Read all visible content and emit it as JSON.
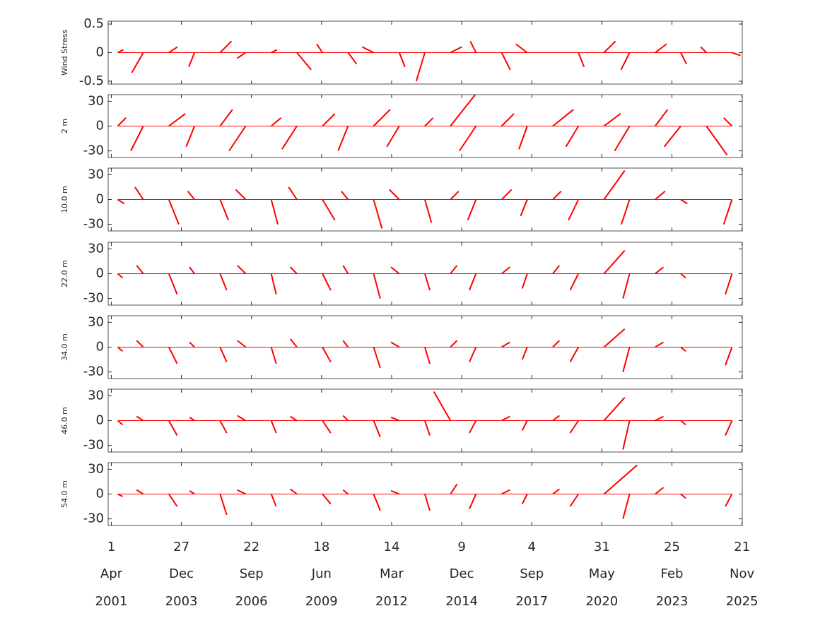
{
  "chart_data": {
    "type": "stick",
    "x": [
      "2001-07-01",
      "2002-07-01",
      "2003-07-01",
      "2004-07-01",
      "2005-07-01",
      "2006-07-01",
      "2007-07-01",
      "2008-07-01",
      "2009-07-01",
      "2010-07-01",
      "2011-07-01",
      "2012-07-01",
      "2013-07-01",
      "2014-07-01",
      "2015-07-01",
      "2016-07-01",
      "2017-07-01",
      "2018-07-01",
      "2019-07-01",
      "2020-07-01",
      "2021-07-01",
      "2022-07-01",
      "2023-07-01",
      "2024-07-01",
      "2025-07-01"
    ],
    "xlim": [
      "2001-02-15",
      "2025-11-25"
    ],
    "xticks": [
      {
        "value": "2001-04-01",
        "label": [
          "1",
          "Apr",
          "2001"
        ]
      },
      {
        "value": "2003-12-27",
        "label": [
          "27",
          "Dec",
          "2003"
        ]
      },
      {
        "value": "2006-09-22",
        "label": [
          "22",
          "Sep",
          "2006"
        ]
      },
      {
        "value": "2009-06-18",
        "label": [
          "18",
          "Jun",
          "2009"
        ]
      },
      {
        "value": "2012-03-14",
        "label": [
          "14",
          "Mar",
          "2012"
        ]
      },
      {
        "value": "2014-12-09",
        "label": [
          "9",
          "Dec",
          "2014"
        ]
      },
      {
        "value": "2017-09-04",
        "label": [
          "4",
          "Sep",
          "2017"
        ]
      },
      {
        "value": "2020-05-31",
        "label": [
          "31",
          "May",
          "2020"
        ]
      },
      {
        "value": "2023-02-25",
        "label": [
          "25",
          "Feb",
          "2023"
        ]
      },
      {
        "value": "2025-11-21",
        "label": [
          "21",
          "Nov",
          "2025"
        ]
      }
    ],
    "color": "#ff0000",
    "panels": [
      {
        "ylabel": "Wind Stress",
        "ylim": [
          -0.55,
          0.55
        ],
        "yticks": [
          0.5,
          0,
          -0.5
        ],
        "u": [
          0.1,
          -0.2,
          0.15,
          -0.1,
          0.2,
          -0.15,
          0.1,
          0.25,
          -0.1,
          0.15,
          -0.2,
          0.1,
          -0.15,
          0.2,
          -0.1,
          0.15,
          -0.2,
          null,
          0.1,
          0.2,
          -0.15,
          0.2,
          0.1,
          -0.1,
          0.15
        ],
        "v": [
          0.05,
          -0.35,
          0.1,
          -0.25,
          0.2,
          -0.1,
          0.05,
          -0.3,
          0.15,
          -0.2,
          0.1,
          -0.25,
          -0.5,
          0.1,
          0.2,
          -0.3,
          0.15,
          null,
          -0.25,
          0.2,
          -0.3,
          0.15,
          -0.2,
          0.1,
          -0.05
        ]
      },
      {
        "ylabel": "2 m",
        "ylim": [
          -38,
          38
        ],
        "yticks": [
          30,
          0,
          -30
        ],
        "u": [
          10,
          -15,
          20,
          -10,
          15,
          -20,
          12,
          -18,
          15,
          -12,
          20,
          -15,
          10,
          30,
          -20,
          15,
          -10,
          25,
          -15,
          20,
          -18,
          15,
          -20,
          25,
          -10
        ],
        "v": [
          10,
          -30,
          15,
          -25,
          20,
          -30,
          10,
          -28,
          15,
          -30,
          20,
          -25,
          10,
          38,
          -30,
          15,
          -28,
          20,
          -25,
          15,
          -30,
          20,
          -25,
          -35,
          10
        ]
      },
      {
        "ylabel": "10.0 m",
        "ylim": [
          -38,
          38
        ],
        "yticks": [
          30,
          0,
          -30
        ],
        "u": [
          8,
          -10,
          12,
          -8,
          10,
          -12,
          8,
          -10,
          15,
          -8,
          10,
          -12,
          8,
          10,
          -10,
          12,
          -8,
          10,
          -12,
          25,
          -10,
          12,
          8,
          null,
          -10
        ],
        "v": [
          -5,
          15,
          -30,
          10,
          -25,
          12,
          -30,
          15,
          -25,
          10,
          -35,
          12,
          -28,
          10,
          -25,
          12,
          -20,
          10,
          -25,
          35,
          -30,
          10,
          -5,
          null,
          -30
        ]
      },
      {
        "ylabel": "22.0 m",
        "ylim": [
          -38,
          38
        ],
        "yticks": [
          30,
          0,
          -30
        ],
        "u": [
          6,
          -8,
          10,
          -6,
          8,
          -10,
          6,
          -8,
          10,
          -6,
          8,
          -10,
          6,
          8,
          -8,
          10,
          -6,
          8,
          -10,
          25,
          -8,
          10,
          6,
          null,
          -8
        ],
        "v": [
          -5,
          10,
          -25,
          8,
          -20,
          10,
          -25,
          8,
          -20,
          10,
          -30,
          8,
          -20,
          10,
          -20,
          8,
          -18,
          10,
          -20,
          28,
          -30,
          8,
          -5,
          null,
          -25
        ]
      },
      {
        "ylabel": "34.0 m",
        "ylim": [
          -38,
          38
        ],
        "yticks": [
          30,
          0,
          -30
        ],
        "u": [
          6,
          -8,
          10,
          -6,
          8,
          -10,
          6,
          -8,
          10,
          -6,
          8,
          -10,
          6,
          8,
          -8,
          10,
          -6,
          8,
          -10,
          25,
          -8,
          10,
          6,
          null,
          -8
        ],
        "v": [
          -5,
          8,
          -20,
          6,
          -18,
          8,
          -20,
          10,
          -18,
          8,
          -25,
          6,
          -20,
          8,
          -18,
          6,
          -15,
          8,
          -18,
          22,
          -30,
          6,
          -5,
          null,
          -22
        ]
      },
      {
        "ylabel": "46.0 m",
        "ylim": [
          -38,
          38
        ],
        "yticks": [
          30,
          0,
          -30
        ],
        "u": [
          6,
          -8,
          10,
          -6,
          8,
          -10,
          6,
          -8,
          10,
          -6,
          8,
          -10,
          6,
          -20,
          -8,
          10,
          -6,
          8,
          -10,
          25,
          -8,
          10,
          6,
          null,
          -8
        ],
        "v": [
          -5,
          5,
          -18,
          4,
          -15,
          6,
          -15,
          5,
          -15,
          6,
          -20,
          4,
          -18,
          35,
          -15,
          5,
          -12,
          6,
          -15,
          28,
          -35,
          5,
          -5,
          null,
          -18
        ]
      },
      {
        "ylabel": "54.0 m",
        "ylim": [
          -38,
          38
        ],
        "yticks": [
          30,
          0,
          -30
        ],
        "u": [
          6,
          -8,
          10,
          -6,
          8,
          -10,
          6,
          -8,
          10,
          -6,
          8,
          -10,
          6,
          8,
          -8,
          10,
          -6,
          8,
          -10,
          40,
          -8,
          10,
          6,
          null,
          -8
        ],
        "v": [
          -3,
          5,
          -15,
          4,
          -25,
          5,
          -15,
          6,
          -12,
          5,
          -20,
          4,
          -20,
          12,
          -18,
          5,
          -12,
          6,
          -15,
          35,
          -30,
          8,
          -5,
          null,
          -15
        ]
      }
    ]
  }
}
